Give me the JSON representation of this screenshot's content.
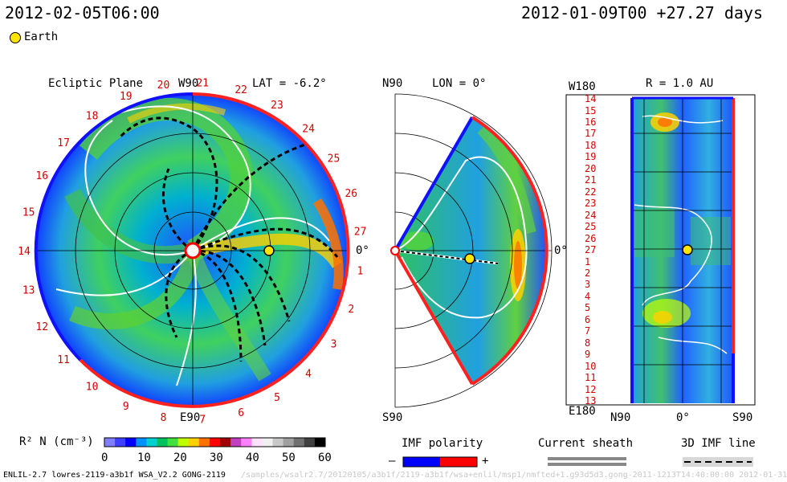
{
  "header": {
    "left_datetime": "2012-02-05T06:00",
    "right_datetime": "2012-01-09T00 +27.27 days",
    "earth_legend": "Earth"
  },
  "panels": {
    "ecliptic": {
      "title": "Ecliptic Plane",
      "top_label": "W90",
      "bottom_label": "E90",
      "lat_label": "LAT = -6.2°",
      "zero_label": "0°",
      "carrington_numbers": [
        "1",
        "2",
        "3",
        "4",
        "5",
        "6",
        "7",
        "8",
        "9",
        "10",
        "11",
        "12",
        "13",
        "14",
        "15",
        "16",
        "17",
        "18",
        "19",
        "20",
        "21",
        "22",
        "23",
        "24",
        "25",
        "26",
        "27"
      ]
    },
    "meridional": {
      "top_label": "N90",
      "bottom_label": "S90",
      "lon_label": "LON = 0°",
      "zero_label": "0°"
    },
    "map": {
      "top_label": "W180",
      "bottom_label": "E180",
      "radius_label": "R = 1.0 AU",
      "x_ticks": [
        "N90",
        "0°",
        "S90"
      ],
      "y_ticks": [
        "14",
        "15",
        "16",
        "17",
        "18",
        "19",
        "20",
        "21",
        "22",
        "23",
        "24",
        "25",
        "26",
        "27",
        "1",
        "2",
        "3",
        "4",
        "5",
        "6",
        "7",
        "8",
        "9",
        "10",
        "11",
        "12",
        "13"
      ]
    }
  },
  "legend": {
    "colorbar_label": "R² N (cm⁻³)",
    "colorbar_ticks": [
      "0",
      "10",
      "20",
      "30",
      "40",
      "50",
      "60"
    ],
    "colors": [
      "#7f7fff",
      "#3f3fff",
      "#0000ff",
      "#0090ff",
      "#00d0d0",
      "#00c060",
      "#40e040",
      "#c0ff00",
      "#ffd000",
      "#ff7000",
      "#ff0000",
      "#a00000",
      "#c040c0",
      "#ff80ff",
      "#ffe0ff",
      "#f0f0f0",
      "#c8c8c8",
      "#a0a0a0",
      "#707070",
      "#404040",
      "#000000"
    ],
    "imf_polarity": {
      "title": "IMF polarity",
      "minus": "–",
      "plus": "+",
      "minus_color": "#0000ff",
      "plus_color": "#ff0000"
    },
    "current_sheath": {
      "title": "Current sheath"
    },
    "imf_line": {
      "title": "3D IMF line"
    }
  },
  "footer": {
    "left_text": "ENLIL-2.7 lowres-2119-a3b1f WSA_V2.2 GONG-2119",
    "faint_text": "/samples/wsalr2.7/20120105/a3b1f/2119-a3b1f/wsa+enlil/msp1/nmfted+1.g93d5d3.gong-2011-1213T14:40:00:00   2012-01-31"
  },
  "chart_data": [
    {
      "type": "heatmap",
      "title": "Ecliptic Plane",
      "subtitle": "LAT = -6.2°",
      "projection": "polar",
      "angle_labels": {
        "top": "W90",
        "bottom": "E90",
        "right": "0°"
      },
      "carrington_sectors": [
        "1",
        "2",
        "3",
        "4",
        "5",
        "6",
        "7",
        "8",
        "9",
        "10",
        "11",
        "12",
        "13",
        "14",
        "15",
        "16",
        "17",
        "18",
        "19",
        "20",
        "21",
        "22",
        "23",
        "24",
        "25",
        "26",
        "27"
      ],
      "colorbar": {
        "label": "R² N (cm⁻³)",
        "range": [
          0,
          60
        ]
      },
      "earth": {
        "longitude_deg": 0,
        "r_au": 1.0
      }
    },
    {
      "type": "heatmap",
      "projection": "polar",
      "subtitle": "LON = 0°",
      "angle_labels": {
        "top": "N90",
        "bottom": "S90",
        "right": "0°"
      },
      "latitude_range_deg": [
        -60,
        60
      ],
      "earth": {
        "latitude_deg": 0,
        "r_au": 1.0
      }
    },
    {
      "type": "heatmap",
      "title": "R = 1.0 AU",
      "xlabels": [
        "N90",
        "0°",
        "S90"
      ],
      "ylabels": [
        "14",
        "15",
        "16",
        "17",
        "18",
        "19",
        "20",
        "21",
        "22",
        "23",
        "24",
        "25",
        "26",
        "27",
        "1",
        "2",
        "3",
        "4",
        "5",
        "6",
        "7",
        "8",
        "9",
        "10",
        "11",
        "12",
        "13"
      ],
      "yaxis_ends": {
        "top": "W180",
        "bottom": "E180"
      },
      "earth": {
        "sector": "27"
      }
    }
  ]
}
